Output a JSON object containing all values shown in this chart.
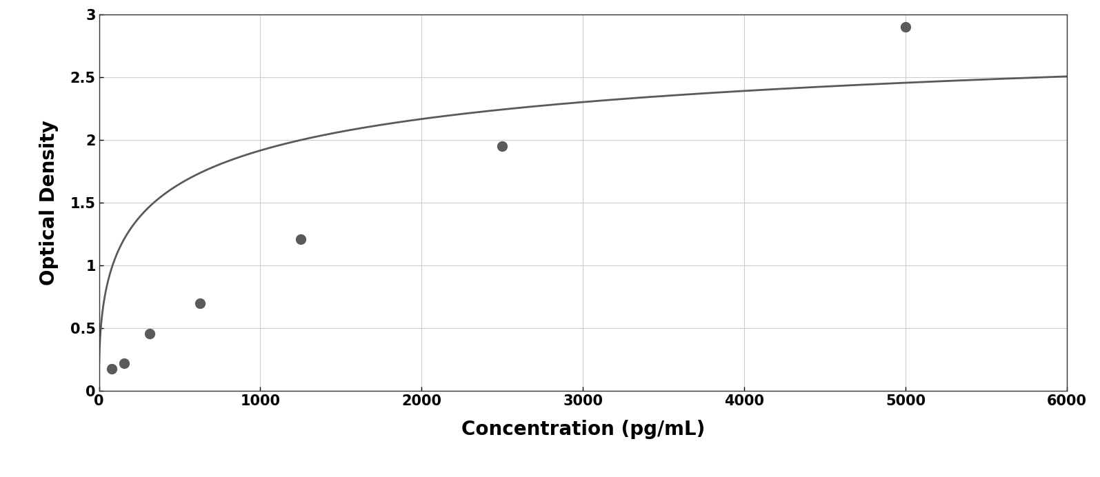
{
  "data_points_x": [
    78,
    156,
    313,
    625,
    1250,
    2500,
    5000
  ],
  "data_points_y": [
    0.18,
    0.22,
    0.46,
    0.7,
    1.21,
    1.95,
    2.9
  ],
  "xlabel": "Concentration (pg/mL)",
  "ylabel": "Optical Density",
  "xlim": [
    0,
    6000
  ],
  "ylim": [
    0,
    3.0
  ],
  "xticks": [
    0,
    1000,
    2000,
    3000,
    4000,
    5000,
    6000
  ],
  "yticks": [
    0,
    0.5,
    1.0,
    1.5,
    2.0,
    2.5,
    3.0
  ],
  "ytick_labels": [
    "0",
    "0.5",
    "1",
    "1.5",
    "2",
    "2.5",
    "3"
  ],
  "marker_color": "#5a5a5a",
  "line_color": "#5a5a5a",
  "background_color": "#ffffff",
  "plot_bg_color": "#ffffff",
  "border_color": "#333333",
  "grid_color": "#cccccc",
  "xlabel_fontsize": 20,
  "ylabel_fontsize": 20,
  "tick_fontsize": 15,
  "marker_size": 10,
  "line_width": 2.0
}
